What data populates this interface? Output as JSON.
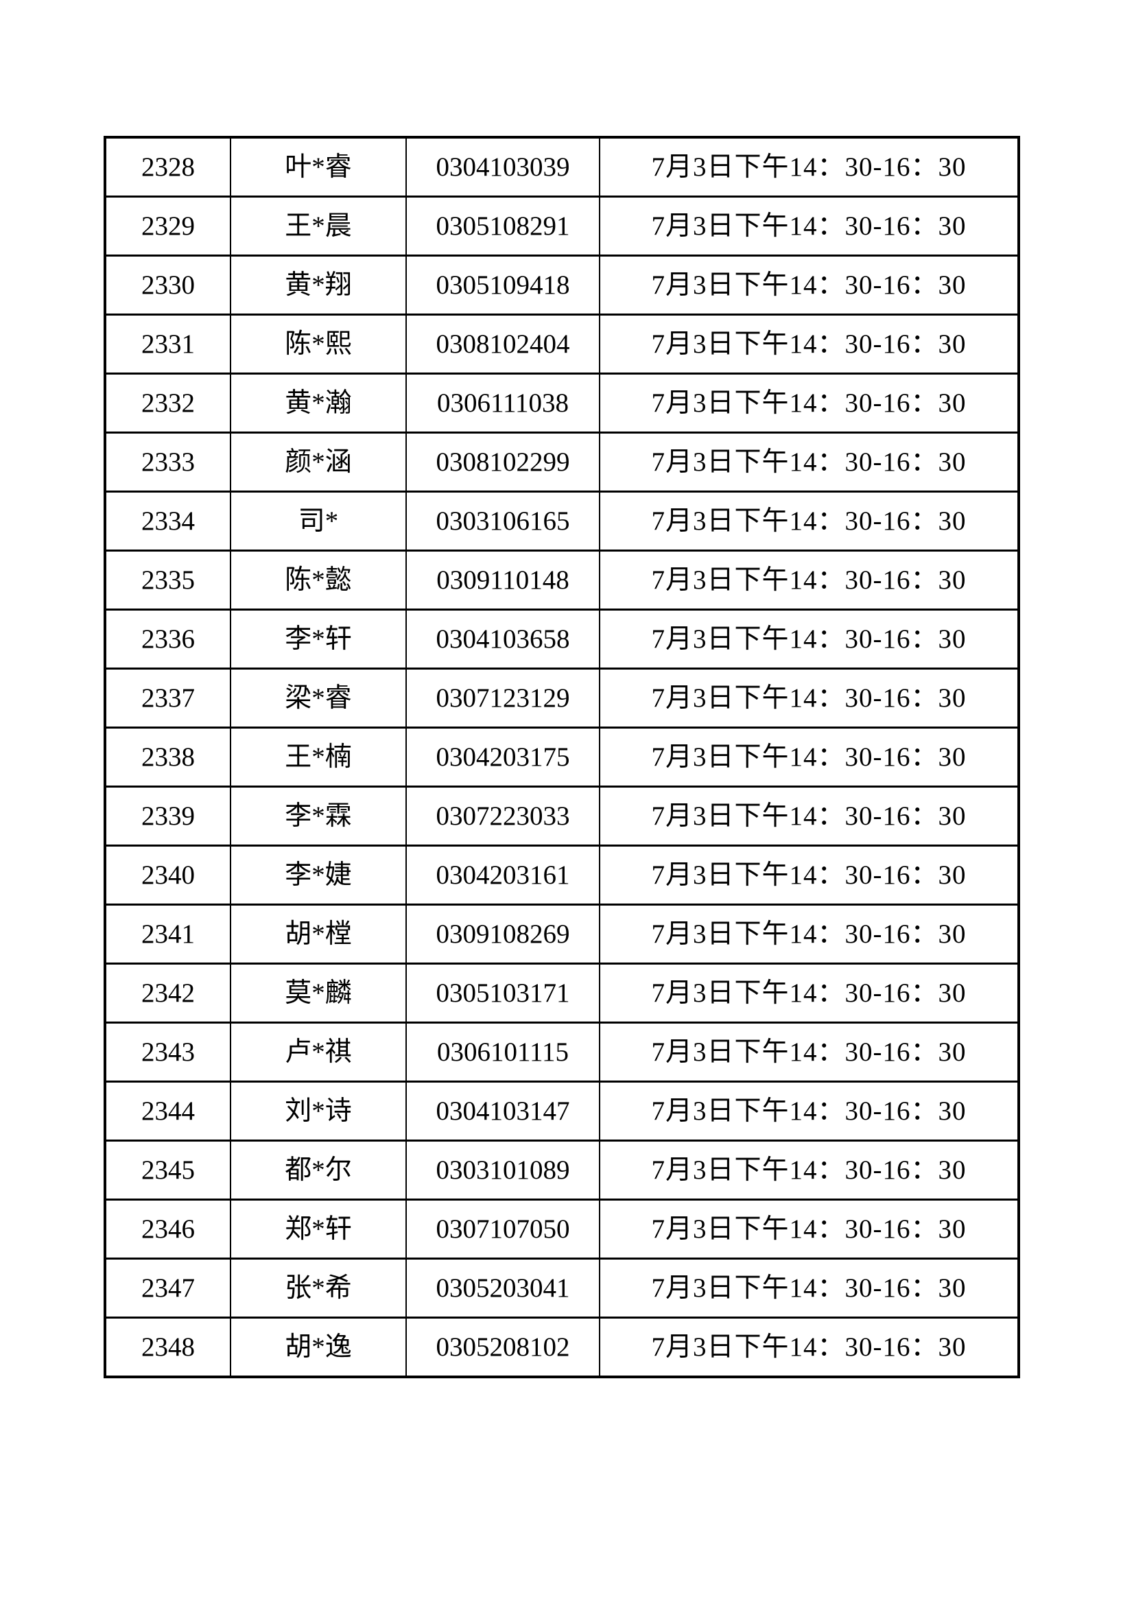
{
  "page": {
    "background_color": "#ffffff",
    "text_color": "#000000",
    "border_color": "#000000"
  },
  "table": {
    "time_slot_label": "7月3日下午14：30-16：30",
    "rows": [
      {
        "no": "2328",
        "name": "叶*睿",
        "id": "0304103039",
        "time": "7月3日下午14：30-16：30"
      },
      {
        "no": "2329",
        "name": "王*晨",
        "id": "0305108291",
        "time": "7月3日下午14：30-16：30"
      },
      {
        "no": "2330",
        "name": "黄*翔",
        "id": "0305109418",
        "time": "7月3日下午14：30-16：30"
      },
      {
        "no": "2331",
        "name": "陈*熙",
        "id": "0308102404",
        "time": "7月3日下午14：30-16：30"
      },
      {
        "no": "2332",
        "name": "黄*瀚",
        "id": "0306111038",
        "time": "7月3日下午14：30-16：30"
      },
      {
        "no": "2333",
        "name": "颜*涵",
        "id": "0308102299",
        "time": "7月3日下午14：30-16：30"
      },
      {
        "no": "2334",
        "name": "司*",
        "id": "0303106165",
        "time": "7月3日下午14：30-16：30"
      },
      {
        "no": "2335",
        "name": "陈*懿",
        "id": "0309110148",
        "time": "7月3日下午14：30-16：30"
      },
      {
        "no": "2336",
        "name": "李*轩",
        "id": "0304103658",
        "time": "7月3日下午14：30-16：30"
      },
      {
        "no": "2337",
        "name": "梁*睿",
        "id": "0307123129",
        "time": "7月3日下午14：30-16：30"
      },
      {
        "no": "2338",
        "name": "王*楠",
        "id": "0304203175",
        "time": "7月3日下午14：30-16：30"
      },
      {
        "no": "2339",
        "name": "李*霖",
        "id": "0307223033",
        "time": "7月3日下午14：30-16：30"
      },
      {
        "no": "2340",
        "name": "李*婕",
        "id": "0304203161",
        "time": "7月3日下午14：30-16：30"
      },
      {
        "no": "2341",
        "name": "胡*樘",
        "id": "0309108269",
        "time": "7月3日下午14：30-16：30"
      },
      {
        "no": "2342",
        "name": "莫*麟",
        "id": "0305103171",
        "time": "7月3日下午14：30-16：30"
      },
      {
        "no": "2343",
        "name": "卢*祺",
        "id": "0306101115",
        "time": "7月3日下午14：30-16：30"
      },
      {
        "no": "2344",
        "name": "刘*诗",
        "id": "0304103147",
        "time": "7月3日下午14：30-16：30"
      },
      {
        "no": "2345",
        "name": "都*尔",
        "id": "0303101089",
        "time": "7月3日下午14：30-16：30"
      },
      {
        "no": "2346",
        "name": "郑*轩",
        "id": "0307107050",
        "time": "7月3日下午14：30-16：30"
      },
      {
        "no": "2347",
        "name": "张*希",
        "id": "0305203041",
        "time": "7月3日下午14：30-16：30"
      },
      {
        "no": "2348",
        "name": "胡*逸",
        "id": "0305208102",
        "time": "7月3日下午14：30-16：30"
      }
    ]
  }
}
